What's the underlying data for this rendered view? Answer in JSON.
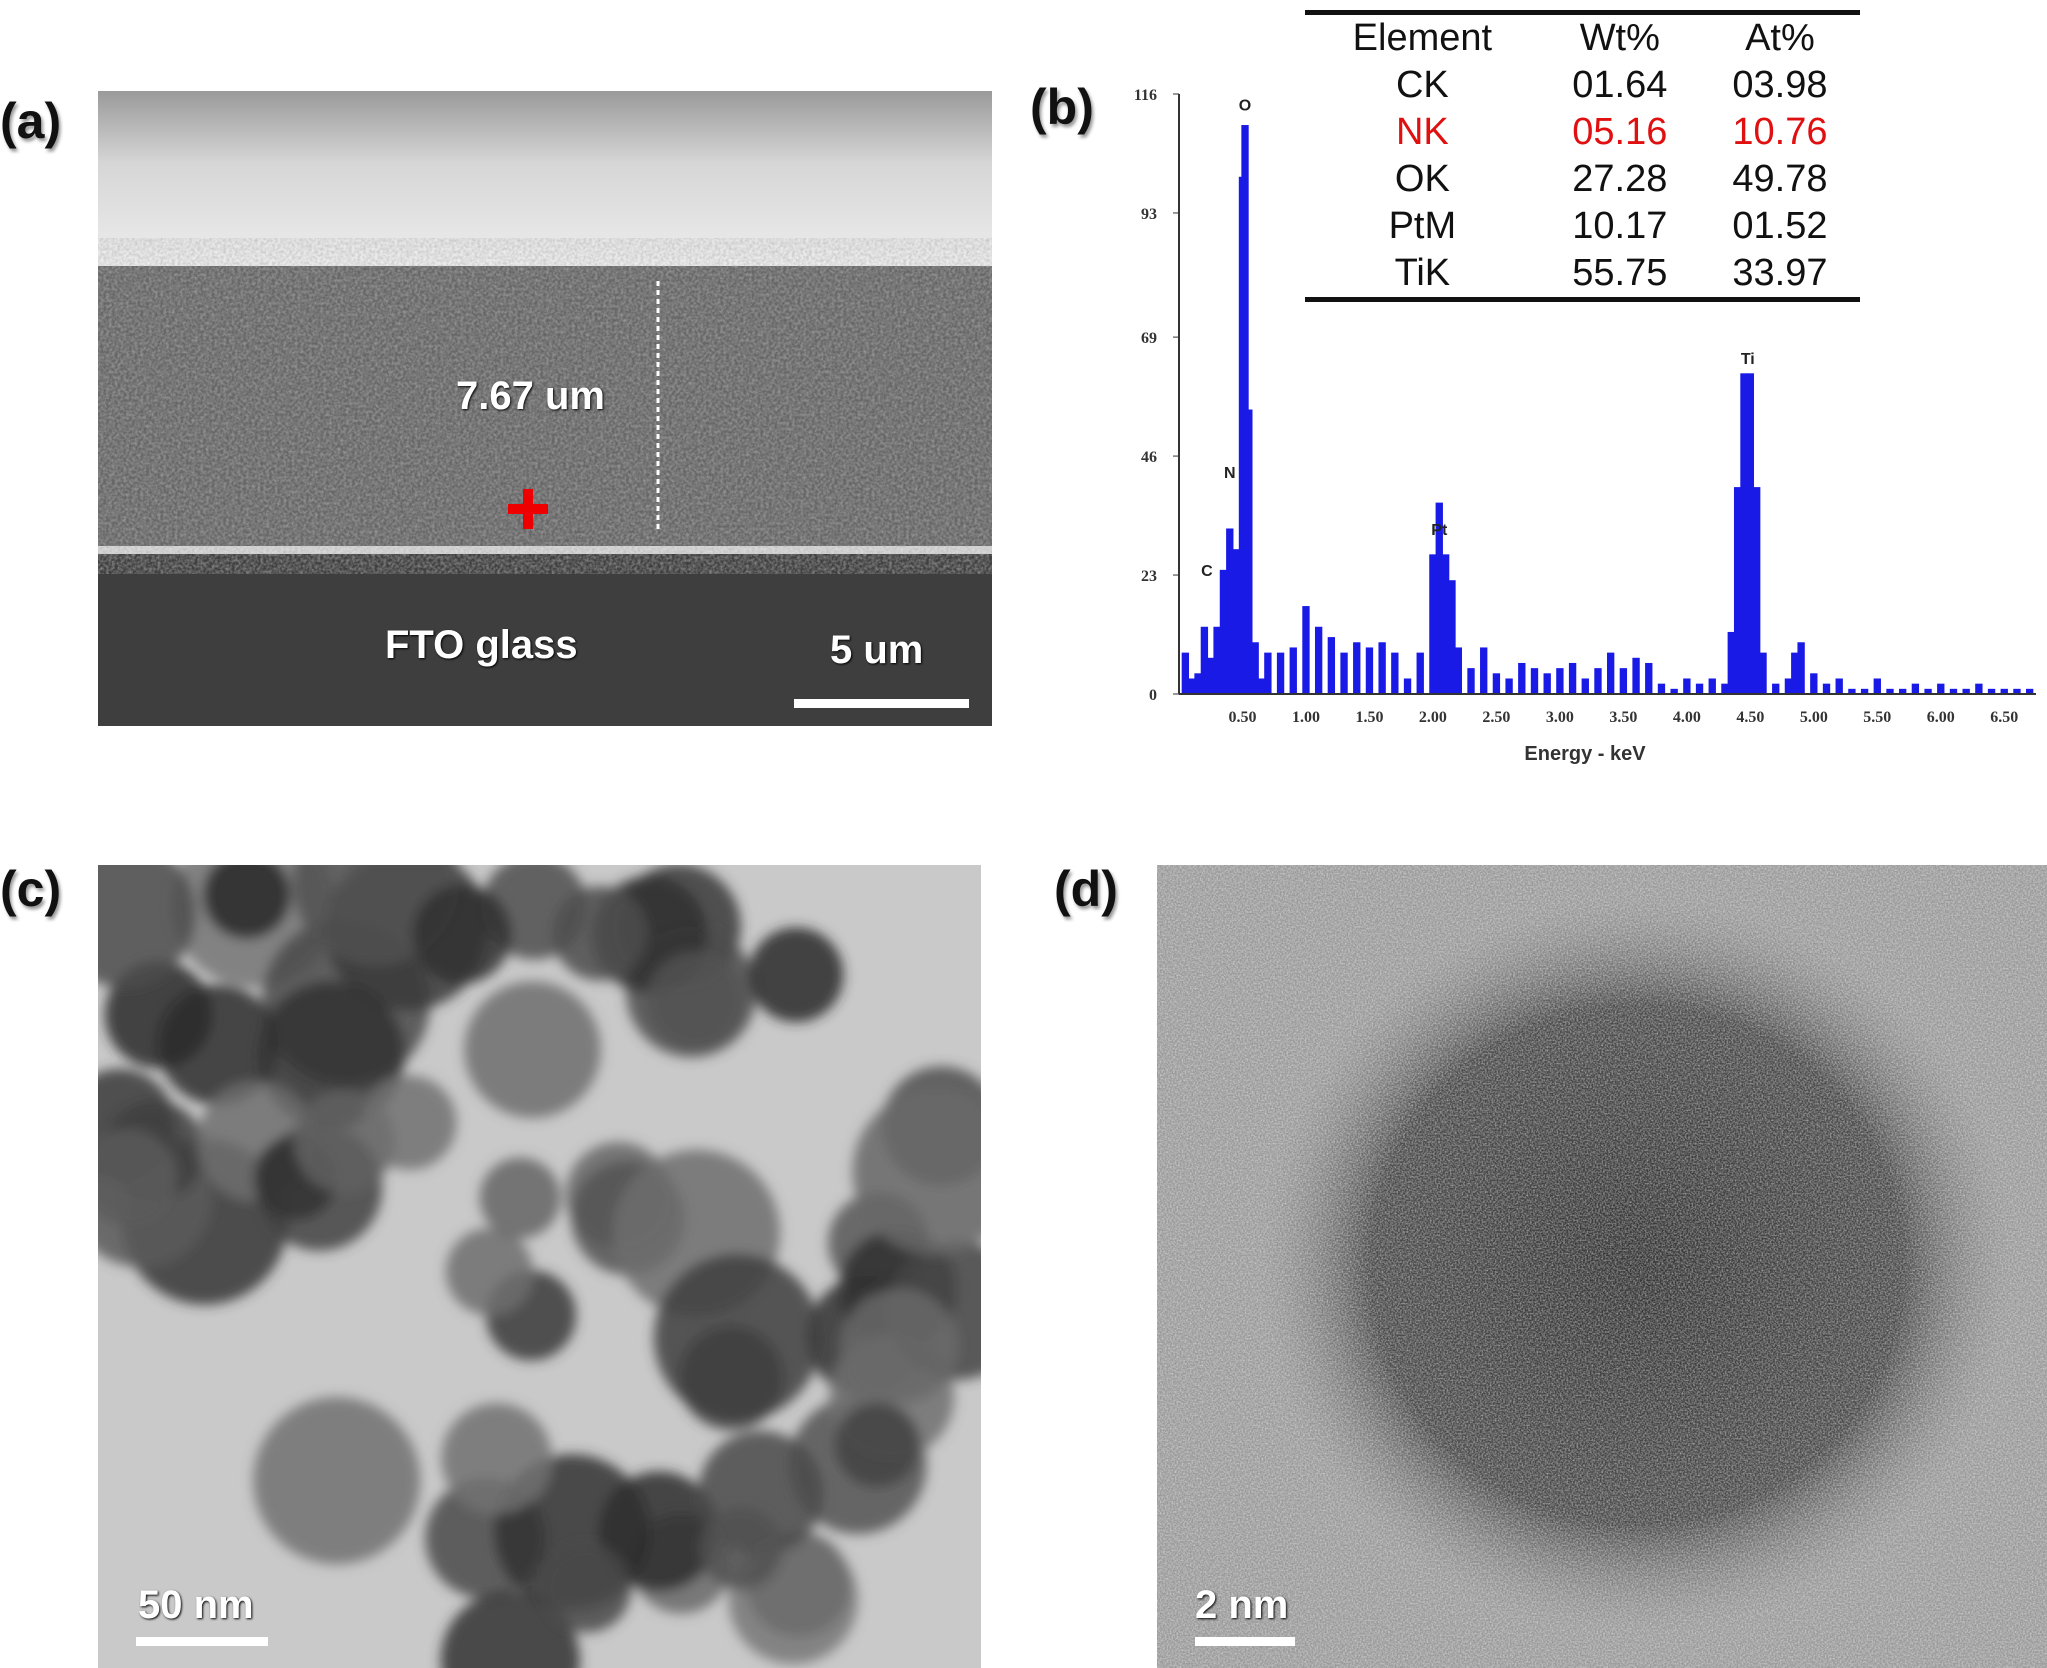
{
  "panels": {
    "a": {
      "label": "(a)",
      "thickness": "7.67 um",
      "substrate": "FTO glass",
      "scale": "5 um"
    },
    "b": {
      "label": "(b)"
    },
    "c": {
      "label": "(c)",
      "scale": "50 nm"
    },
    "d": {
      "label": "(d)",
      "scale": "2 nm"
    }
  },
  "table": {
    "headers": [
      "Element",
      "Wt%",
      "At%"
    ],
    "rows": [
      [
        "CK",
        "01.64",
        "03.98"
      ],
      [
        "NK",
        "05.16",
        "10.76"
      ],
      [
        "OK",
        "27.28",
        "49.78"
      ],
      [
        "PtM",
        "10.17",
        "01.52"
      ],
      [
        "TiK",
        "55.75",
        "33.97"
      ]
    ],
    "highlight_row": 1,
    "highlight_color": "#e01010"
  },
  "chart_data": {
    "type": "bar",
    "xlabel": "Energy - keV",
    "ylabel": "",
    "xlim": [
      0,
      6.75
    ],
    "ylim": [
      0,
      116
    ],
    "yticks": [
      "0",
      "23",
      "46",
      "69",
      "93",
      "116"
    ],
    "ytick_values": [
      0,
      23,
      46,
      69,
      93,
      116
    ],
    "xticks": [
      "0.50",
      "1.00",
      "1.50",
      "2.00",
      "2.50",
      "3.00",
      "3.50",
      "4.00",
      "4.50",
      "5.00",
      "5.50",
      "6.00",
      "6.50"
    ],
    "xtick_values": [
      0.5,
      1,
      1.5,
      2,
      2.5,
      3,
      3.5,
      4,
      4.5,
      5,
      5.5,
      6,
      6.5
    ],
    "color": "#1a1ae6",
    "x": [
      0.05,
      0.1,
      0.15,
      0.2,
      0.25,
      0.3,
      0.35,
      0.4,
      0.45,
      0.5,
      0.52,
      0.55,
      0.6,
      0.65,
      0.7,
      0.8,
      0.9,
      1.0,
      1.1,
      1.2,
      1.3,
      1.4,
      1.5,
      1.6,
      1.7,
      1.8,
      1.9,
      2.0,
      2.05,
      2.1,
      2.15,
      2.2,
      2.3,
      2.4,
      2.5,
      2.6,
      2.7,
      2.8,
      2.9,
      3.0,
      3.1,
      3.2,
      3.3,
      3.4,
      3.5,
      3.6,
      3.7,
      3.8,
      3.9,
      4.0,
      4.1,
      4.2,
      4.3,
      4.35,
      4.4,
      4.45,
      4.5,
      4.55,
      4.6,
      4.7,
      4.8,
      4.85,
      4.9,
      5.0,
      5.1,
      5.2,
      5.3,
      5.4,
      5.5,
      5.6,
      5.7,
      5.8,
      5.9,
      6.0,
      6.1,
      6.2,
      6.3,
      6.4,
      6.5,
      6.6,
      6.7
    ],
    "values": [
      8,
      3,
      4,
      13,
      7,
      13,
      24,
      32,
      28,
      100,
      110,
      55,
      10,
      3,
      8,
      8,
      9,
      17,
      13,
      11,
      8,
      10,
      9,
      10,
      8,
      3,
      8,
      27,
      37,
      27,
      22,
      9,
      5,
      9,
      4,
      3,
      6,
      5,
      4,
      5,
      6,
      3,
      5,
      8,
      5,
      7,
      6,
      2,
      1,
      3,
      2,
      3,
      2,
      12,
      40,
      62,
      62,
      40,
      8,
      2,
      3,
      8,
      10,
      4,
      2,
      3,
      1,
      1,
      3,
      1,
      1,
      2,
      1,
      2,
      1,
      1,
      2,
      1,
      1,
      1,
      1
    ],
    "annotations": [
      {
        "text": "C",
        "x": 0.22,
        "y": 22
      },
      {
        "text": "N",
        "x": 0.4,
        "y": 41
      },
      {
        "text": "O",
        "x": 0.52,
        "y": 112
      },
      {
        "text": "Pt",
        "x": 2.05,
        "y": 30
      },
      {
        "text": "Ti",
        "x": 4.48,
        "y": 63
      }
    ]
  }
}
